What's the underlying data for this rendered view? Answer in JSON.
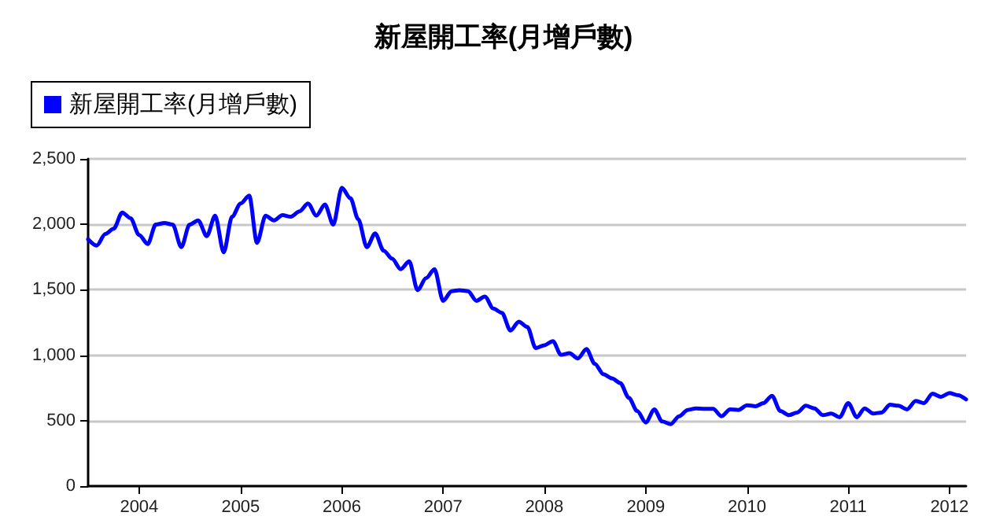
{
  "chart_data": {
    "type": "line",
    "title": "新屋開工率(月增戶數)",
    "x": [
      "2003-07",
      "2003-08",
      "2003-09",
      "2003-10",
      "2003-11",
      "2003-12",
      "2004-01",
      "2004-02",
      "2004-03",
      "2004-04",
      "2004-05",
      "2004-06",
      "2004-07",
      "2004-08",
      "2004-09",
      "2004-10",
      "2004-11",
      "2004-12",
      "2005-01",
      "2005-02",
      "2005-03",
      "2005-04",
      "2005-05",
      "2005-06",
      "2005-07",
      "2005-08",
      "2005-09",
      "2005-10",
      "2005-11",
      "2005-12",
      "2006-01",
      "2006-02",
      "2006-03",
      "2006-04",
      "2006-05",
      "2006-06",
      "2006-07",
      "2006-08",
      "2006-09",
      "2006-10",
      "2006-11",
      "2006-12",
      "2007-01",
      "2007-02",
      "2007-03",
      "2007-04",
      "2007-05",
      "2007-06",
      "2007-07",
      "2007-08",
      "2007-09",
      "2007-10",
      "2007-11",
      "2007-12",
      "2008-01",
      "2008-02",
      "2008-03",
      "2008-04",
      "2008-05",
      "2008-06",
      "2008-07",
      "2008-08",
      "2008-09",
      "2008-10",
      "2008-11",
      "2008-12",
      "2009-01",
      "2009-02",
      "2009-03",
      "2009-04",
      "2009-05",
      "2009-06",
      "2009-07",
      "2009-08",
      "2009-09",
      "2009-10",
      "2009-11",
      "2009-12",
      "2010-01",
      "2010-02",
      "2010-03",
      "2010-04",
      "2010-05",
      "2010-06",
      "2010-07",
      "2010-08",
      "2010-09",
      "2010-10",
      "2010-11",
      "2010-12",
      "2011-01",
      "2011-02",
      "2011-03",
      "2011-04",
      "2011-05",
      "2011-06",
      "2011-07",
      "2011-08",
      "2011-09",
      "2011-10",
      "2011-11",
      "2011-12",
      "2012-01",
      "2012-02",
      "2012-03"
    ],
    "series": [
      {
        "name": "新屋開工率(月增戶數)",
        "color": "#0000ff",
        "values": [
          1886,
          1838,
          1926,
          1966,
          2090,
          2047,
          1918,
          1850,
          1998,
          2010,
          1998,
          1826,
          1998,
          2030,
          1910,
          2066,
          1786,
          2058,
          2159,
          2219,
          1858,
          2066,
          2030,
          2070,
          2058,
          2099,
          2159,
          2066,
          2151,
          1998,
          2279,
          2199,
          2039,
          1826,
          1930,
          1798,
          1738,
          1657,
          1717,
          1497,
          1589,
          1657,
          1416,
          1489,
          1497,
          1489,
          1416,
          1449,
          1356,
          1324,
          1188,
          1256,
          1216,
          1055,
          1076,
          1108,
          1003,
          1015,
          975,
          1047,
          935,
          855,
          823,
          787,
          674,
          574,
          486,
          586,
          494,
          474,
          534,
          582,
          594,
          590,
          590,
          534,
          586,
          582,
          618,
          610,
          634,
          690,
          574,
          542,
          562,
          614,
          594,
          542,
          554,
          526,
          634,
          526,
          594,
          554,
          562,
          622,
          614,
          586,
          650,
          634,
          706,
          682,
          710,
          694,
          662
        ]
      }
    ],
    "xlim": [
      "2003-07",
      "2012-03"
    ],
    "xticks": [
      {
        "value": "2004",
        "label": "2004"
      },
      {
        "value": "2005",
        "label": "2005"
      },
      {
        "value": "2006",
        "label": "2006"
      },
      {
        "value": "2007",
        "label": "2007"
      },
      {
        "value": "2008",
        "label": "2008"
      },
      {
        "value": "2009",
        "label": "2009"
      },
      {
        "value": "2010",
        "label": "2010"
      },
      {
        "value": "2011",
        "label": "2011"
      },
      {
        "value": "2012",
        "label": "2012"
      }
    ],
    "ylim": [
      0,
      2500
    ],
    "yticks": [
      0,
      {
        "value": 500,
        "label": "500"
      },
      {
        "value": 1000,
        "label": "1,000"
      },
      {
        "value": 1500,
        "label": "1,500"
      },
      {
        "value": 2000,
        "label": "2,000"
      },
      {
        "value": 2500,
        "label": "2,500"
      }
    ],
    "grid": "y",
    "legend": "top left",
    "marker": "none",
    "line_style": "solid"
  }
}
